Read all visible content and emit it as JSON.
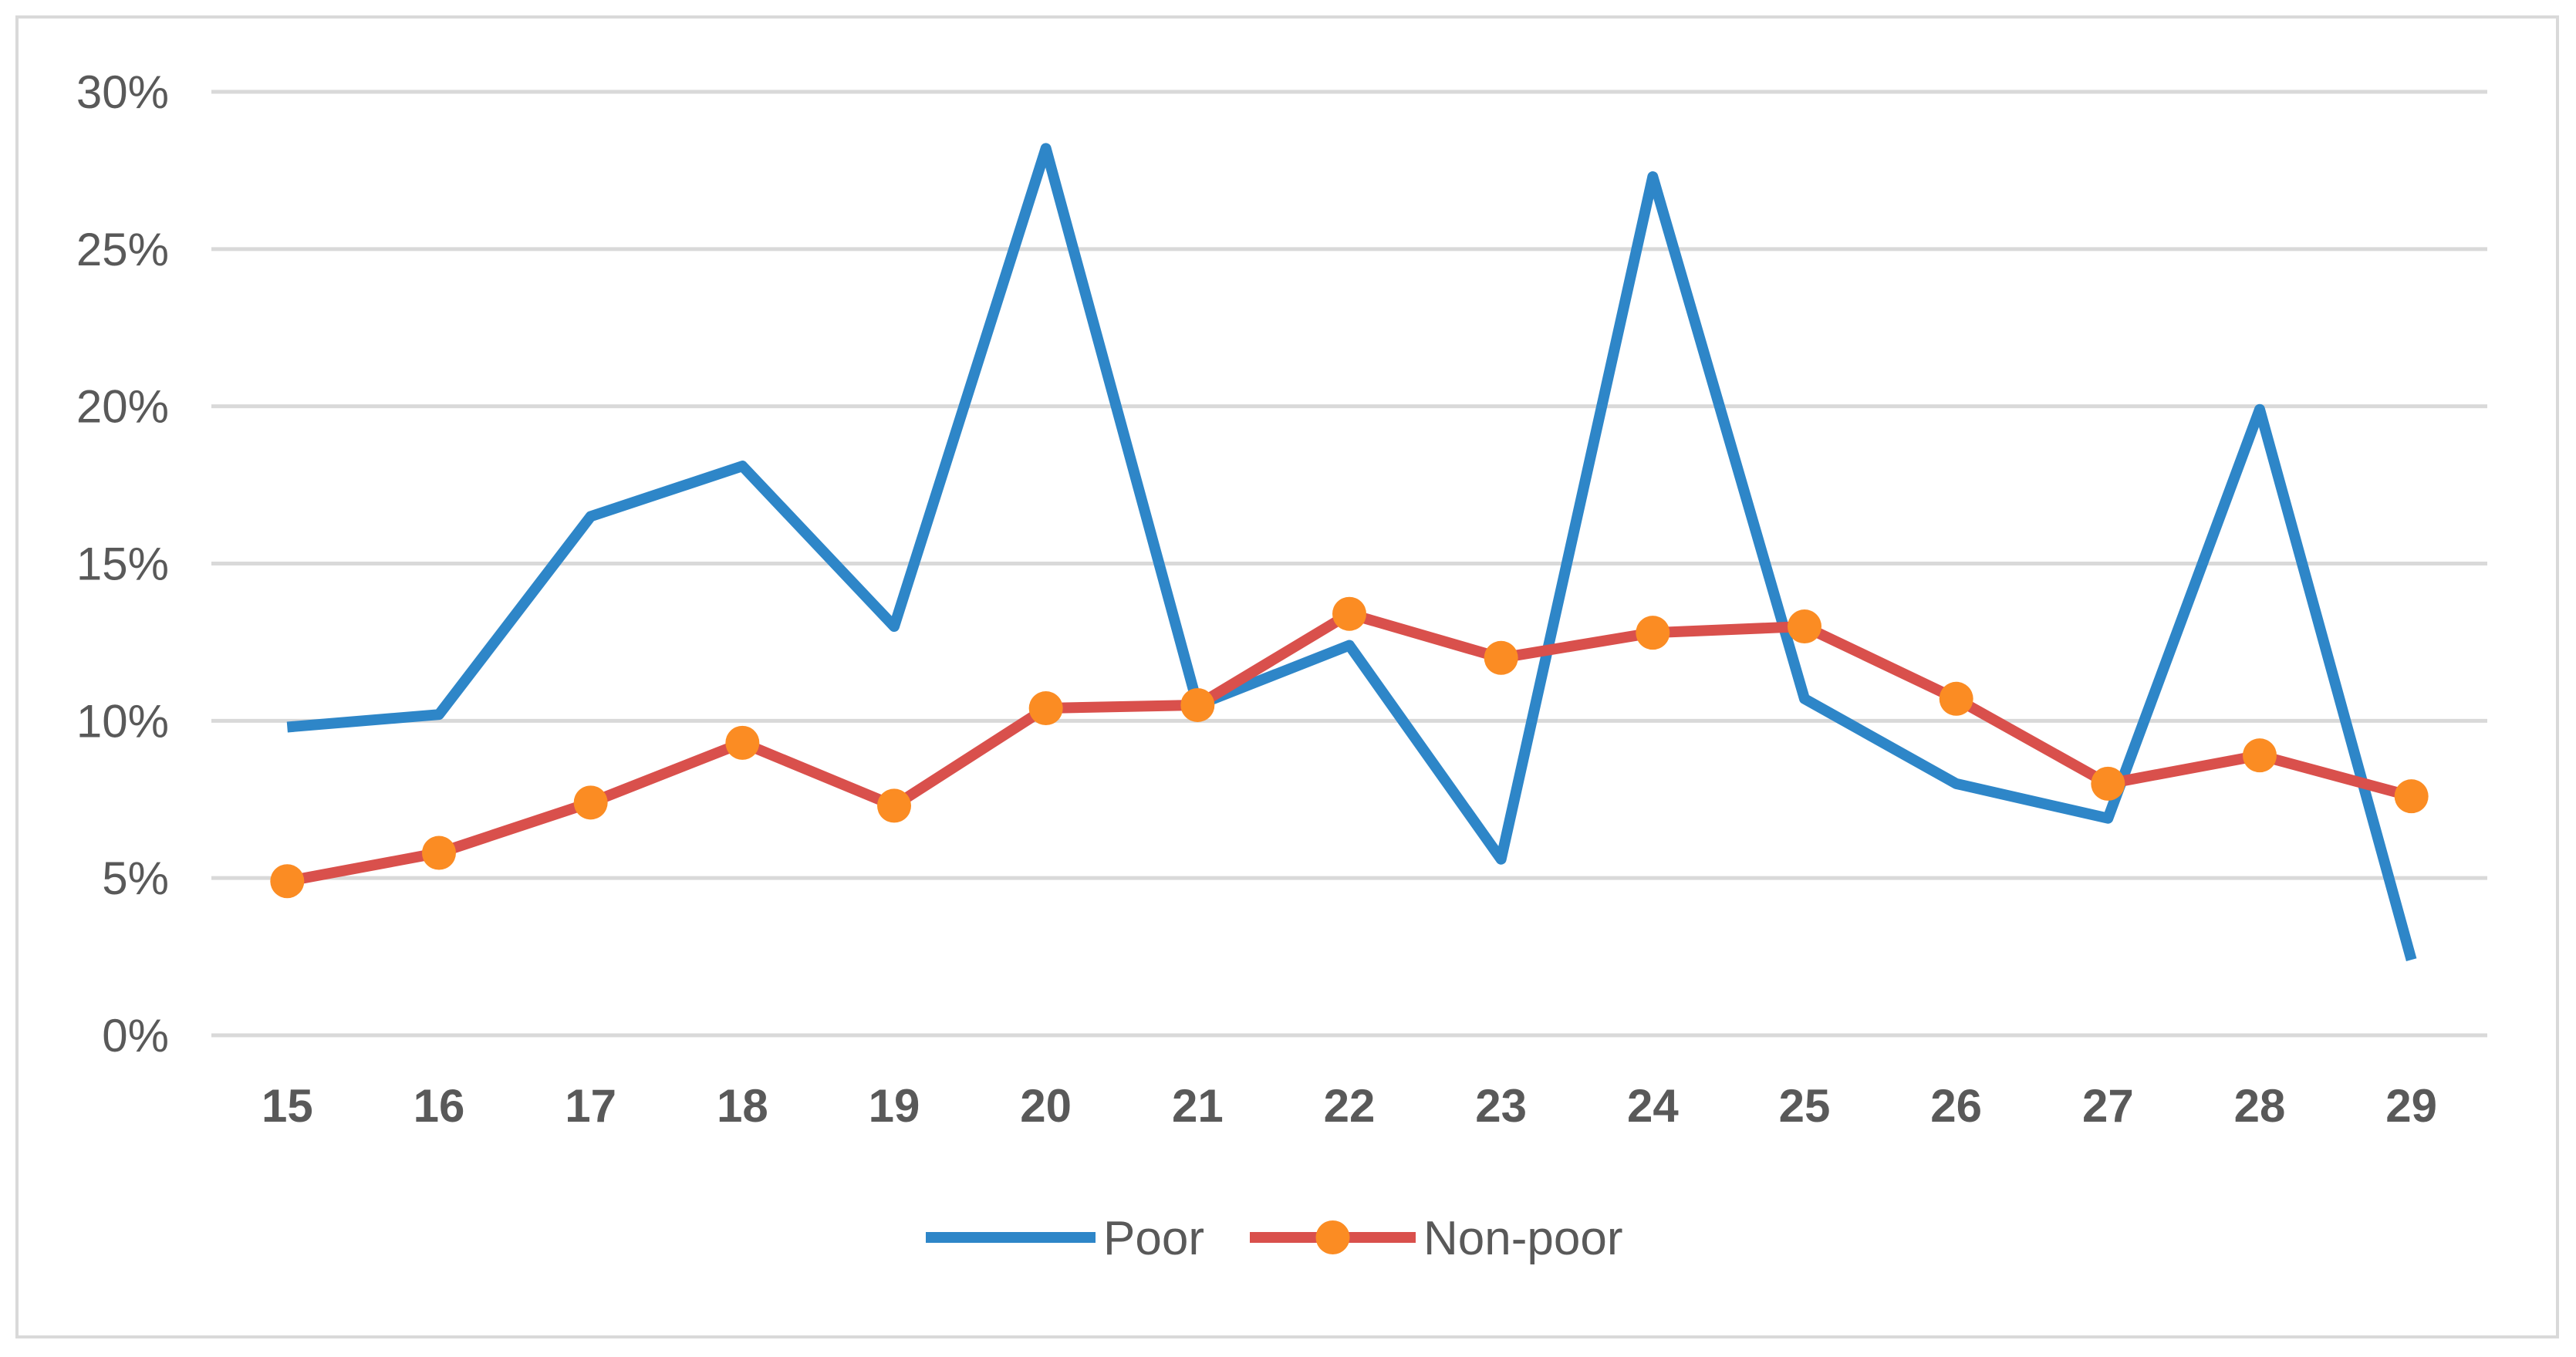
{
  "chart_data": {
    "type": "line",
    "title": "",
    "xlabel": "",
    "ylabel": "",
    "categories": [
      "15",
      "16",
      "17",
      "18",
      "19",
      "20",
      "21",
      "22",
      "23",
      "24",
      "25",
      "26",
      "27",
      "28",
      "29"
    ],
    "y_ticks": [
      "0%",
      "5%",
      "10%",
      "15%",
      "20%",
      "25%",
      "30%"
    ],
    "ylim": [
      0,
      30
    ],
    "grid": "horizontal",
    "legend_position": "bottom",
    "series": [
      {
        "name": "Poor",
        "color": "#2e86c8",
        "marker": "none",
        "values": [
          9.8,
          10.2,
          16.5,
          18.1,
          13.0,
          28.2,
          10.5,
          12.4,
          5.6,
          27.3,
          10.7,
          8.0,
          6.9,
          19.9,
          2.4
        ]
      },
      {
        "name": "Non-poor",
        "color": "#d9504c",
        "marker_color": "#fb8c23",
        "marker": "circle",
        "values": [
          4.9,
          5.8,
          7.4,
          9.3,
          7.3,
          10.4,
          10.5,
          13.4,
          12.0,
          12.8,
          13.0,
          10.7,
          8.0,
          8.9,
          7.6
        ]
      }
    ]
  }
}
